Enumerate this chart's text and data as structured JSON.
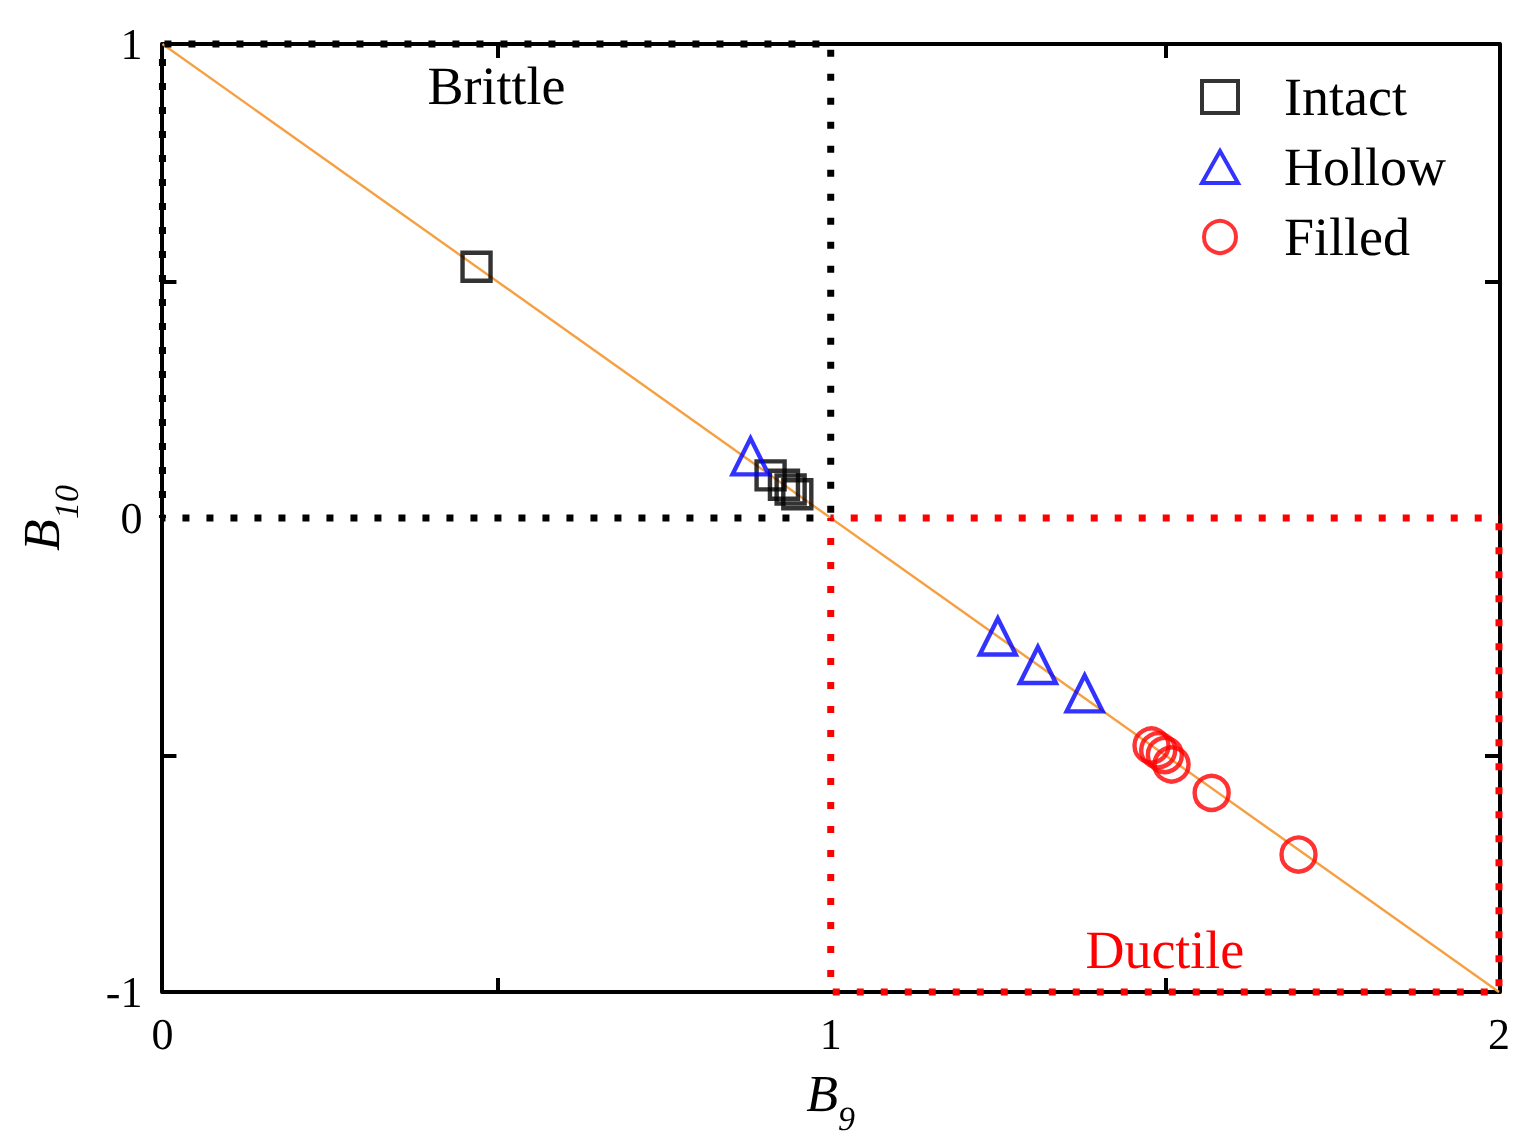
{
  "chart_data": {
    "type": "scatter",
    "xlabel": "B$_{9}$",
    "ylabel": "B$_{10}$",
    "xlim": [
      0,
      2
    ],
    "ylim": [
      -1,
      1
    ],
    "xticks": [
      0,
      {
        "value": 0.5,
        "label": null
      },
      1,
      {
        "value": 1.5,
        "label": null
      },
      2
    ],
    "yticks": [
      -1,
      {
        "value": -0.5,
        "label": null
      },
      0,
      {
        "value": 0.5,
        "label": null
      },
      1
    ],
    "grid": false,
    "legend": "top right",
    "series": [
      {
        "name": "Brittle",
        "type": "line",
        "color": "#000000",
        "line_style": "dotted",
        "marker": "none",
        "x": [
          0,
          0,
          1,
          1
        ],
        "values": [
          0,
          1,
          1,
          0
        ]
      },
      {
        "type": "line",
        "color": "#000000",
        "line_style": "dotted",
        "marker": "none",
        "x": [
          0,
          1
        ],
        "values": [
          0,
          0
        ]
      },
      {
        "name": "Ductile",
        "type": "line",
        "color": "#ff0000",
        "line_style": "dotted",
        "marker": "none",
        "x": [
          1,
          1,
          2,
          2
        ],
        "values": [
          0,
          -1,
          -1,
          0
        ]
      },
      {
        "type": "line",
        "color": "#ff0000",
        "line_style": "dotted",
        "marker": "none",
        "x": [
          1,
          2
        ],
        "values": [
          0,
          0
        ]
      },
      {
        "type": "line",
        "color": "#f5a042",
        "line_style": "solid",
        "marker": "none",
        "x": [
          0,
          2
        ],
        "values": [
          1,
          -1
        ]
      },
      {
        "name": "Intact",
        "color": "#000000",
        "marker": "square",
        "x": [
          0.47,
          0.91,
          0.93,
          0.94,
          0.95
        ],
        "values": [
          0.53,
          0.09,
          0.07,
          0.06,
          0.05
        ]
      },
      {
        "name": "Hollow",
        "color": "#0000ff",
        "marker": "triangle",
        "x": [
          0.88,
          1.25,
          1.31,
          1.38
        ],
        "values": [
          0.13,
          -0.25,
          -0.31,
          -0.37
        ]
      },
      {
        "name": "Filled",
        "color": "#ff0000",
        "marker": "circle",
        "x": [
          1.48,
          1.49,
          1.5,
          1.51,
          1.57,
          1.7
        ],
        "values": [
          -0.48,
          -0.49,
          -0.5,
          -0.52,
          -0.58,
          -0.71
        ]
      }
    ]
  }
}
